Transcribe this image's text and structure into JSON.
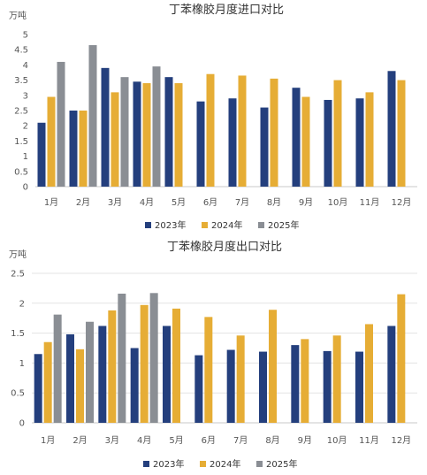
{
  "colors": {
    "2023年": "#243f7d",
    "2024年": "#e6ad35",
    "2025年": "#8a8e94",
    "grid": "#e3e3e3",
    "axis": "#c9c9c9"
  },
  "chart_data": [
    {
      "type": "bar",
      "title": "丁苯橡胶月度进口对比",
      "ylabel": "万吨",
      "xlabel": "",
      "ylim": [
        0,
        5
      ],
      "yticks": [
        "0",
        "0.5",
        "1",
        "1.5",
        "2",
        "2.5",
        "3",
        "3.5",
        "4",
        "4.5",
        "5"
      ],
      "categories": [
        "1月",
        "2月",
        "3月",
        "4月",
        "5月",
        "6月",
        "7月",
        "8月",
        "9月",
        "10月",
        "11月",
        "12月"
      ],
      "legend_position": "bottom",
      "grid": false,
      "series": [
        {
          "name": "2023年",
          "values": [
            2.1,
            2.5,
            3.9,
            3.45,
            3.6,
            2.8,
            2.9,
            2.6,
            3.25,
            2.85,
            2.9,
            3.8
          ]
        },
        {
          "name": "2024年",
          "values": [
            2.95,
            2.5,
            3.1,
            3.4,
            3.4,
            3.7,
            3.65,
            3.55,
            2.95,
            3.5,
            3.1,
            3.5
          ]
        },
        {
          "name": "2025年",
          "values": [
            4.1,
            4.65,
            3.6,
            3.95,
            null,
            null,
            null,
            null,
            null,
            null,
            null,
            null
          ]
        }
      ]
    },
    {
      "type": "bar",
      "title": "丁苯橡胶月度出口对比",
      "ylabel": "万吨",
      "xlabel": "",
      "ylim": [
        0,
        2.5
      ],
      "yticks": [
        "0",
        "0.5",
        "1",
        "1.5",
        "2",
        "2.5"
      ],
      "categories": [
        "1月",
        "2月",
        "3月",
        "4月",
        "5月",
        "6月",
        "7月",
        "8月",
        "9月",
        "10月",
        "11月",
        "12月"
      ],
      "legend_position": "bottom",
      "grid": true,
      "series": [
        {
          "name": "2023年",
          "values": [
            1.15,
            1.48,
            1.62,
            1.25,
            1.62,
            1.13,
            1.22,
            1.19,
            1.3,
            1.2,
            1.19,
            1.62
          ]
        },
        {
          "name": "2024年",
          "values": [
            1.35,
            1.23,
            1.88,
            1.97,
            1.91,
            1.77,
            1.46,
            1.89,
            1.4,
            1.46,
            1.65,
            2.15
          ]
        },
        {
          "name": "2025年",
          "values": [
            1.81,
            1.69,
            2.16,
            2.17,
            null,
            null,
            null,
            null,
            null,
            null,
            null,
            null
          ]
        }
      ]
    }
  ]
}
